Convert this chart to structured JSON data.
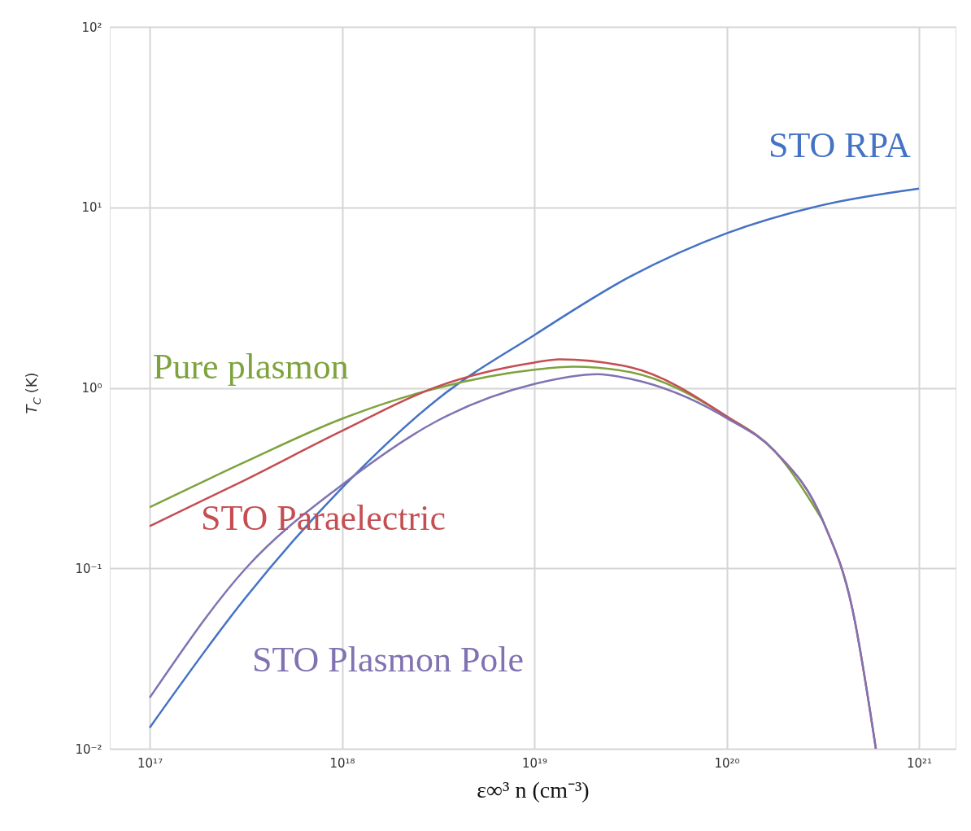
{
  "chart_data": {
    "type": "line",
    "xlabel": "ε∞³ n (cm⁻³)",
    "ylabel": "T$_{C}$ (K)",
    "log": "xy",
    "grid": true,
    "legend": false,
    "marker": "none",
    "line_style": "solid",
    "xlim": [
      6.2e+16,
      1.55e+21
    ],
    "ylim": [
      0.01,
      100
    ],
    "xticks": [
      {
        "value": 1e+17,
        "label": "10¹⁷"
      },
      {
        "value": 1e+18,
        "label": "10¹⁸"
      },
      {
        "value": 1e+19,
        "label": "10¹⁹"
      },
      {
        "value": 1e+20,
        "label": "10²⁰"
      },
      {
        "value": 1e+21,
        "label": "10²¹"
      }
    ],
    "yticks": [
      {
        "value": 0.01,
        "label": "10⁻²"
      },
      {
        "value": 0.1,
        "label": "10⁻¹"
      },
      {
        "value": 1,
        "label": "10⁰"
      },
      {
        "value": 10,
        "label": "10¹"
      },
      {
        "value": 100,
        "label": "10²"
      }
    ],
    "series": [
      {
        "name": "STO RPA",
        "color": "#4472c4",
        "x": [
          1e+17,
          3.16e+17,
          1e+18,
          3.16e+18,
          1e+19,
          3.16e+19,
          1e+20,
          3.16e+20,
          1e+21
        ],
        "values": [
          0.0131,
          0.069,
          0.279,
          0.87,
          1.96,
          4.14,
          7.18,
          10.3,
          12.7
        ]
      },
      {
        "name": "Pure plasmon",
        "color": "#7ea33e",
        "x": [
          1e+17,
          3.16e+17,
          1e+18,
          3.16e+18,
          1e+19,
          1.6e+19,
          3.16e+19,
          1e+20,
          1.78e+20,
          3.16e+20
        ],
        "values": [
          0.218,
          0.39,
          0.674,
          1.0,
          1.26,
          1.31,
          1.22,
          0.695,
          0.445,
          0.184
        ]
      },
      {
        "name": "STO Paraelectric",
        "color": "#c44e52",
        "x": [
          1e+17,
          3.16e+17,
          1e+18,
          3.16e+18,
          1e+19,
          1.35e+19,
          3.16e+19,
          1e+20,
          1.78e+20,
          3.16e+20,
          4.5e+20,
          5.97e+20
        ],
        "values": [
          0.171,
          0.31,
          0.577,
          1.02,
          1.38,
          1.44,
          1.3,
          0.695,
          0.445,
          0.184,
          0.06,
          0.01
        ]
      },
      {
        "name": "STO Plasmon Pole",
        "color": "#8172b2",
        "x": [
          1e+17,
          3.16e+17,
          1e+18,
          3.16e+18,
          1e+19,
          2.14e+19,
          3.16e+19,
          1e+20,
          1.78e+20,
          3.16e+20,
          4.5e+20,
          5.97e+20
        ],
        "values": [
          0.0192,
          0.1,
          0.29,
          0.66,
          1.05,
          1.19,
          1.12,
          0.68,
          0.445,
          0.184,
          0.06,
          0.01
        ]
      }
    ]
  }
}
